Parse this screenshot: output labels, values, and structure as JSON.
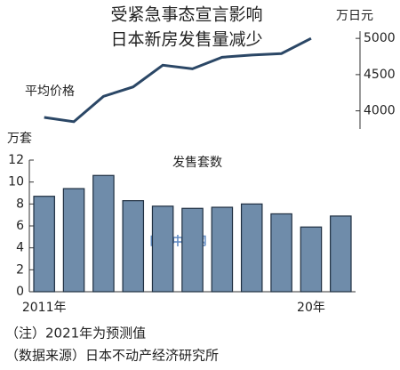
{
  "header": {
    "title": [
      "受紧急事态宣言影响",
      "日本新房发售量减少"
    ]
  },
  "chart_data": [
    {
      "type": "line",
      "title": "平均价格",
      "y_label": "万日元",
      "categories": [
        "2011年",
        null,
        null,
        null,
        null,
        null,
        null,
        null,
        null,
        "20年",
        null
      ],
      "values": [
        3910,
        3850,
        4200,
        4330,
        4630,
        4580,
        4740,
        4770,
        4790,
        5000,
        null
      ],
      "color": "#2b4766",
      "ylim": [
        3750,
        5100
      ],
      "yticks": [
        4000,
        4500,
        5000
      ],
      "axis_side": "right"
    },
    {
      "type": "bar",
      "title": "发售套数",
      "y_label": "万套",
      "categories": [
        "2011年",
        null,
        null,
        null,
        null,
        null,
        null,
        null,
        null,
        "20年",
        null
      ],
      "values": [
        8.7,
        9.4,
        10.6,
        8.3,
        7.8,
        7.6,
        7.7,
        8.0,
        7.1,
        5.9,
        6.9
      ],
      "color": "#6f8caa",
      "ylim": [
        0,
        12
      ],
      "yticks": [
        0,
        2,
        4,
        6,
        8,
        10,
        12
      ],
      "axis_side": "left"
    }
  ],
  "watermark": "日经中文网",
  "notes": [
    "（注）2021年为预测值",
    "（数据来源）日本不动产经济研究所"
  ]
}
